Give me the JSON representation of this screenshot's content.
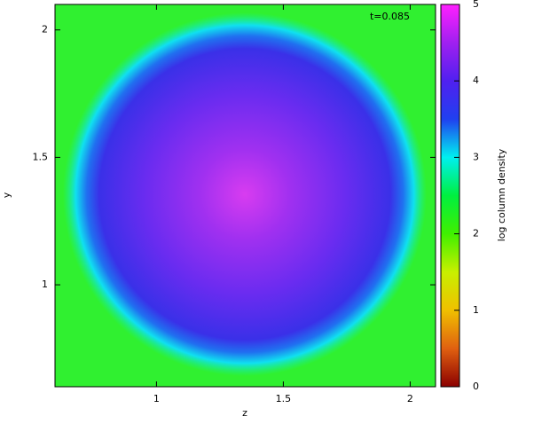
{
  "chart_data": {
    "type": "image",
    "annotation": "t=0.085",
    "x_label": "z",
    "y_label": "y",
    "xlim": [
      0.6,
      2.1
    ],
    "xticks": [
      1,
      1.5,
      2
    ],
    "ylim": [
      0.6,
      2.1
    ],
    "yticks": [
      1,
      1.5,
      2
    ],
    "colorbar": {
      "label": "log column density",
      "lim": [
        0,
        5
      ],
      "ticks": [
        0,
        1,
        2,
        3,
        4,
        5
      ],
      "colors": [
        "#8b0000",
        "#e06010",
        "#f0c000",
        "#c8f000",
        "#40f000",
        "#00f040",
        "#00f0f0",
        "#2040f0",
        "#5020f0",
        "#a020f0",
        "#ff20ff"
      ]
    }
  }
}
